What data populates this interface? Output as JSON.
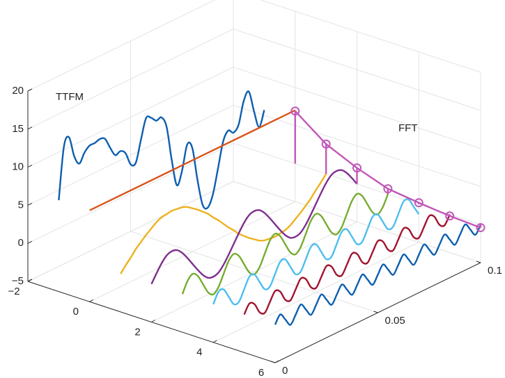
{
  "chart_data": {
    "type": "line3d",
    "annotations": [
      "TTFM",
      "FFT"
    ],
    "xlim": [
      -2,
      6
    ],
    "xticks": [
      {
        "value": -2,
        "label": "−2"
      },
      0,
      2,
      4,
      6
    ],
    "ylim": [
      0,
      0.1
    ],
    "yticks": [
      0,
      0.05,
      0.1
    ],
    "zlim": [
      -5,
      20
    ],
    "zticks": [
      {
        "value": -5,
        "label": "−5"
      },
      0,
      5,
      10,
      15,
      20
    ],
    "grid": true,
    "t": [
      0,
      0.0025,
      0.005,
      0.0075,
      0.01,
      0.0125,
      0.015,
      0.0175,
      0.02,
      0.0225,
      0.025,
      0.0275,
      0.03,
      0.0325,
      0.035,
      0.0375,
      0.04,
      0.0425,
      0.045,
      0.0475,
      0.05,
      0.0525,
      0.055,
      0.0575,
      0.06,
      0.0625,
      0.065,
      0.0675,
      0.07,
      0.0725,
      0.075,
      0.0775,
      0.08,
      0.0825,
      0.085,
      0.0875,
      0.09,
      0.0925,
      0.095,
      0.0975,
      0.1
    ],
    "series": [
      {
        "color": "#0d5eaf",
        "x": -1,
        "values": [
          7,
          13.7,
          14.6,
          11.8,
          10.5,
          11.6,
          12.2,
          12.2,
          12.4,
          12.1,
          10.6,
          9.3,
          9.5,
          8.9,
          7.1,
          7.0,
          9.7,
          12.2,
          11.9,
          11.2,
          11.3,
          9.7,
          5.0,
          1.4,
          3.0,
          6.1,
          5.3,
          0.8,
          -2.8,
          -3.5,
          -2.1,
          1.0,
          4.2,
          5.3,
          4.7,
          5.4,
          8.2,
          9.1,
          6.2,
          3.8,
          5.7
        ]
      },
      {
        "color": "#d95319",
        "x": 0,
        "t": [
          0,
          0.1
        ],
        "values": [
          7,
          7
        ]
      },
      {
        "color": "#edb120",
        "x": 1,
        "values": [
          0,
          0.8,
          1.5,
          2.3,
          2.9,
          3.5,
          4,
          4.5,
          4.8,
          4.9,
          5,
          4.9,
          4.8,
          4.5,
          4,
          3.5,
          2.9,
          2.3,
          1.5,
          0.8,
          0,
          -0.8,
          -1.5,
          -2.3,
          -2.9,
          -3.5,
          -4,
          -4.5,
          -4.8,
          -4.9,
          -5,
          -4.9,
          -4.8,
          -4.5,
          -4,
          -3.5,
          -2.9,
          -2.3,
          -1.5,
          -0.8,
          0
        ]
      },
      {
        "color": "#7e2f8e",
        "x": 2,
        "values": [
          0,
          1.1,
          2.1,
          2.8,
          3,
          2.8,
          2.1,
          1.1,
          0,
          -1.1,
          -2.1,
          -2.8,
          -3,
          -2.8,
          -2.1,
          -1.1,
          0,
          1.1,
          2.1,
          2.8,
          3,
          2.8,
          2.1,
          1.1,
          0,
          -1.1,
          -2.1,
          -2.8,
          -3,
          -2.8,
          -2.1,
          -1.1,
          0,
          1.1,
          2.1,
          2.8,
          3,
          2.8,
          2.1,
          1.1,
          0
        ]
      },
      {
        "color": "#77ac30",
        "x": 3,
        "values": [
          0,
          1.4,
          2,
          1.4,
          0,
          -1.4,
          -2,
          -1.4,
          0,
          1.4,
          2,
          1.4,
          0,
          -1.4,
          -2,
          -1.4,
          0,
          1.4,
          2,
          1.4,
          0,
          -1.4,
          -2,
          -1.4,
          0,
          1.4,
          2,
          1.4,
          0,
          -1.4,
          -2,
          -1.4,
          0,
          1.4,
          2,
          1.4,
          0,
          -1.4,
          -2,
          -1.4,
          0
        ]
      },
      {
        "color": "#4dbeee",
        "x": 4,
        "values": [
          0,
          1.3,
          1.3,
          0,
          -1.3,
          -1.3,
          0,
          1.3,
          1.3,
          0,
          -1.3,
          -1.3,
          0,
          1.3,
          1.3,
          0,
          -1.3,
          -1.3,
          0,
          1.3,
          1.3,
          0,
          -1.3,
          -1.3,
          0,
          1.3,
          1.3,
          0,
          -1.3,
          -1.3,
          0,
          1.3,
          1.3,
          0,
          -1.3,
          -1.3,
          0,
          1.3,
          1.3,
          0,
          -1.3
        ]
      },
      {
        "color": "#a2142f",
        "x": 5,
        "values": [
          0,
          1.1,
          0.7,
          -0.7,
          -1.1,
          0,
          1.1,
          0.7,
          -0.7,
          -1.1,
          0,
          1.1,
          0.7,
          -0.7,
          -1.1,
          0,
          1.1,
          0.7,
          -0.7,
          -1.1,
          0,
          1.1,
          0.7,
          -0.7,
          -1.1,
          0,
          1.1,
          0.7,
          -0.7,
          -1.1,
          0,
          1.1,
          0.7,
          -0.7,
          -1.1,
          0,
          1.1,
          0.7,
          -0.7,
          -1.1,
          0
        ]
      },
      {
        "color": "#0d5eaf",
        "x": 6,
        "values": [
          0,
          1,
          0,
          -1,
          0,
          1,
          0,
          -1,
          0,
          1,
          0,
          -1,
          0,
          1,
          0,
          -1,
          0,
          1,
          0,
          -1,
          0,
          1,
          0,
          -1,
          0,
          1,
          0,
          -1,
          0,
          1,
          0,
          -1,
          0,
          1,
          0,
          -1,
          0,
          1,
          0,
          -1,
          0
        ]
      }
    ],
    "fft": {
      "color": "#c057b8",
      "x": [
        0,
        1,
        2,
        3,
        4,
        5,
        6
      ],
      "values": [
        6.9,
        3.9,
        2.1,
        0.7,
        0.2,
        -0.2,
        -0.4
      ]
    }
  }
}
